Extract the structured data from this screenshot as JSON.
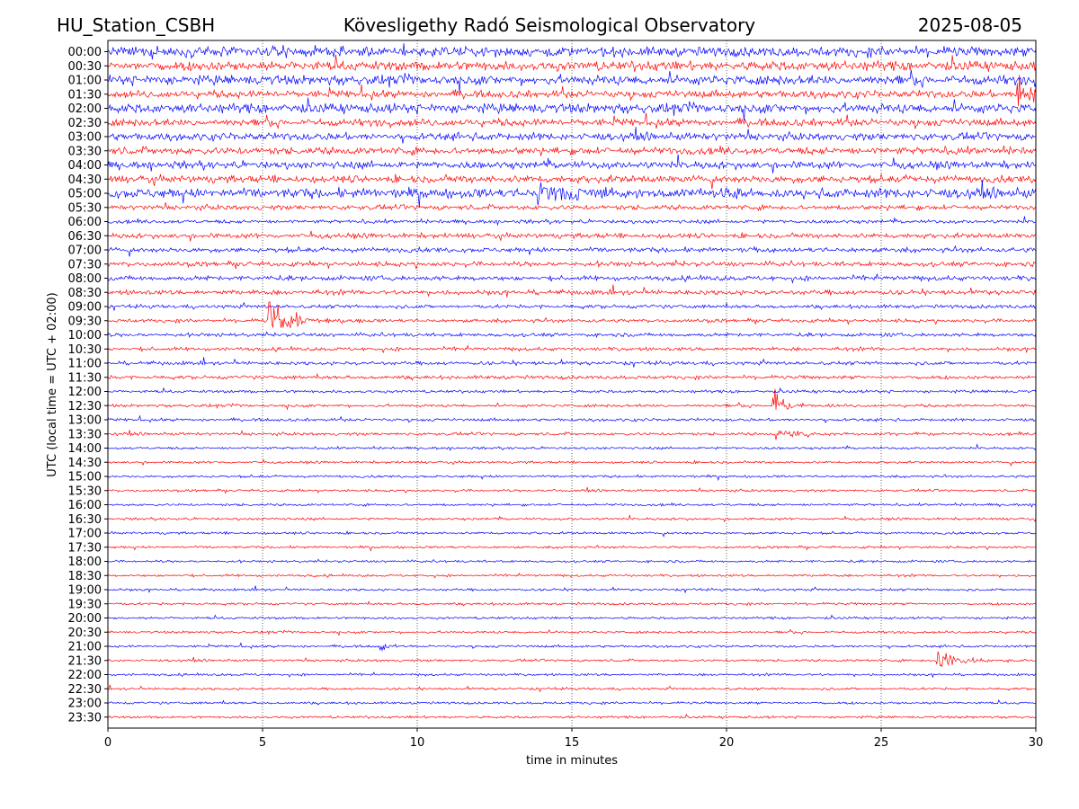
{
  "header": {
    "station": "HU_Station_CSBH",
    "observatory": "Kövesligethy Radó Seismological Observatory",
    "date": "2025-08-05"
  },
  "chart_data": {
    "type": "line",
    "xlabel": "time in minutes",
    "ylabel": "UTC (local time = UTC + 02:00)",
    "xlim": [
      0,
      30
    ],
    "xticks": [
      0,
      5,
      10,
      15,
      20,
      25,
      30
    ],
    "vertical_gridlines": [
      5,
      10,
      15,
      20,
      25
    ],
    "grid": "vertical dotted",
    "trace_colors": [
      "#0000ff",
      "#ff0000"
    ],
    "rows": [
      "00:00",
      "00:30",
      "01:00",
      "01:30",
      "02:00",
      "02:30",
      "03:00",
      "03:30",
      "04:00",
      "04:30",
      "05:00",
      "05:30",
      "06:00",
      "06:30",
      "07:00",
      "07:30",
      "08:00",
      "08:30",
      "09:00",
      "09:30",
      "10:00",
      "10:30",
      "11:00",
      "11:30",
      "12:00",
      "12:30",
      "13:00",
      "13:30",
      "14:00",
      "14:30",
      "15:00",
      "15:30",
      "16:00",
      "16:30",
      "17:00",
      "17:30",
      "18:00",
      "18:30",
      "19:00",
      "19:30",
      "20:00",
      "20:30",
      "21:00",
      "21:30",
      "22:00",
      "22:30",
      "23:00",
      "23:30"
    ],
    "noise_level": [
      4,
      4,
      4,
      3,
      4,
      3,
      3,
      3,
      3,
      3,
      4,
      2,
      1.5,
      2,
      2,
      2,
      2,
      2,
      1.5,
      1.5,
      1.5,
      1.5,
      1.5,
      1.5,
      1.2,
      1.2,
      1.2,
      1.2,
      1,
      1,
      1,
      1,
      1,
      1,
      1,
      1,
      1,
      1,
      1,
      1,
      1,
      1,
      1,
      1,
      1,
      1,
      1,
      1
    ],
    "events": [
      {
        "row": "01:30",
        "minute": 29.4,
        "amplitude": 22,
        "duration": 0.8
      },
      {
        "row": "05:00",
        "minute": 13.9,
        "amplitude": 12,
        "duration": 3.5
      },
      {
        "row": "05:00",
        "minute": 19.8,
        "amplitude": 6,
        "duration": 0.6
      },
      {
        "row": "07:00",
        "minute": 20.7,
        "amplitude": 4,
        "duration": 0.6
      },
      {
        "row": "09:30",
        "minute": 5.2,
        "amplitude": 26,
        "duration": 1.3
      },
      {
        "row": "12:30",
        "minute": 21.5,
        "amplitude": 14,
        "duration": 0.8
      },
      {
        "row": "13:30",
        "minute": 21.6,
        "amplitude": 5,
        "duration": 2.0
      },
      {
        "row": "15:30",
        "minute": 14.4,
        "amplitude": 4,
        "duration": 0.3
      },
      {
        "row": "21:00",
        "minute": 8.8,
        "amplitude": 5,
        "duration": 0.6
      },
      {
        "row": "21:30",
        "minute": 26.8,
        "amplitude": 9,
        "duration": 1.8
      }
    ]
  }
}
